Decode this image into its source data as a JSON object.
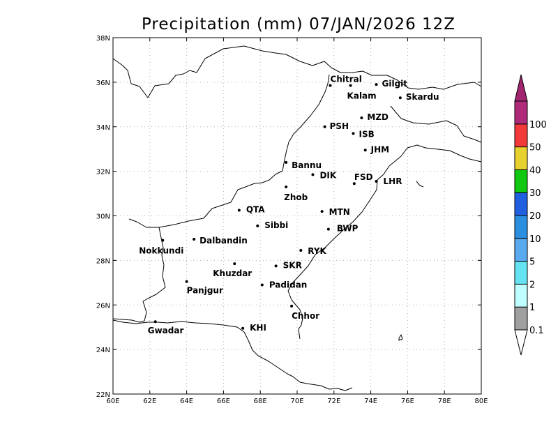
{
  "title": "Precipitation (mm) 07/JAN/2026 12Z",
  "map": {
    "lon_range": [
      60,
      80
    ],
    "lat_range": [
      22,
      38
    ],
    "grid": "dotted",
    "x_ticks": [
      {
        "value": 60,
        "label": "60E"
      },
      {
        "value": 62,
        "label": "62E"
      },
      {
        "value": 64,
        "label": "64E"
      },
      {
        "value": 66,
        "label": "66E"
      },
      {
        "value": 68,
        "label": "68E"
      },
      {
        "value": 70,
        "label": "70E"
      },
      {
        "value": 72,
        "label": "72E"
      },
      {
        "value": 74,
        "label": "74E"
      },
      {
        "value": 76,
        "label": "76E"
      },
      {
        "value": 78,
        "label": "78E"
      },
      {
        "value": 80,
        "label": "80E"
      }
    ],
    "y_ticks": [
      {
        "value": 22,
        "label": "22N"
      },
      {
        "value": 24,
        "label": "24N"
      },
      {
        "value": 26,
        "label": "26N"
      },
      {
        "value": 28,
        "label": "28N"
      },
      {
        "value": 30,
        "label": "30N"
      },
      {
        "value": 32,
        "label": "32N"
      },
      {
        "value": 34,
        "label": "34N"
      },
      {
        "value": 36,
        "label": "36N"
      },
      {
        "value": 38,
        "label": "38N"
      }
    ]
  },
  "cities": [
    {
      "name": "Chitral",
      "lon": 71.8,
      "lat": 35.85,
      "dx": 0,
      "dy": -5
    },
    {
      "name": "Gilgit",
      "lon": 74.3,
      "lat": 35.9,
      "dx": 8,
      "dy": 3
    },
    {
      "name": "Kalam",
      "lon": 72.9,
      "lat": 35.85,
      "dx": -5,
      "dy": 19
    },
    {
      "name": "Skardu",
      "lon": 75.6,
      "lat": 35.3,
      "dx": 8,
      "dy": 3
    },
    {
      "name": "MZD",
      "lon": 73.5,
      "lat": 34.4,
      "dx": 8,
      "dy": 3
    },
    {
      "name": "PSH",
      "lon": 71.5,
      "lat": 34.0,
      "dx": 7,
      "dy": 3
    },
    {
      "name": "ISB",
      "lon": 73.05,
      "lat": 33.7,
      "dx": 8,
      "dy": 5
    },
    {
      "name": "JHM",
      "lon": 73.7,
      "lat": 32.95,
      "dx": 8,
      "dy": 3
    },
    {
      "name": "Bannu",
      "lon": 69.4,
      "lat": 32.4,
      "dx": 8,
      "dy": 8
    },
    {
      "name": "DIK",
      "lon": 70.85,
      "lat": 31.85,
      "dx": 10,
      "dy": 5
    },
    {
      "name": "FSD",
      "lon": 73.1,
      "lat": 31.45,
      "dx": 0,
      "dy": -5
    },
    {
      "name": "LHR",
      "lon": 74.3,
      "lat": 31.55,
      "dx": 10,
      "dy": 4
    },
    {
      "name": "Zhob",
      "lon": 69.4,
      "lat": 31.3,
      "dx": -3,
      "dy": 19
    },
    {
      "name": "QTA",
      "lon": 66.85,
      "lat": 30.25,
      "dx": 10,
      "dy": 3
    },
    {
      "name": "MTN",
      "lon": 71.35,
      "lat": 30.2,
      "dx": 10,
      "dy": 5
    },
    {
      "name": "Sibbi",
      "lon": 67.85,
      "lat": 29.55,
      "dx": 10,
      "dy": 3
    },
    {
      "name": "BWP",
      "lon": 71.7,
      "lat": 29.4,
      "dx": 12,
      "dy": 3
    },
    {
      "name": "Nokkundi",
      "lon": 62.7,
      "lat": 28.9,
      "dx": -34,
      "dy": 19
    },
    {
      "name": "Dalbandin",
      "lon": 64.4,
      "lat": 28.95,
      "dx": 8,
      "dy": 6
    },
    {
      "name": "RYK",
      "lon": 70.2,
      "lat": 28.45,
      "dx": 10,
      "dy": 5
    },
    {
      "name": "Khuzdar",
      "lon": 66.6,
      "lat": 27.85,
      "dx": -31,
      "dy": 18
    },
    {
      "name": "SKR",
      "lon": 68.85,
      "lat": 27.75,
      "dx": 10,
      "dy": 3
    },
    {
      "name": "Panjgur",
      "lon": 64.0,
      "lat": 27.05,
      "dx": 0,
      "dy": 17
    },
    {
      "name": "Padidan",
      "lon": 68.1,
      "lat": 26.9,
      "dx": 10,
      "dy": 4
    },
    {
      "name": "Chhor",
      "lon": 69.7,
      "lat": 25.95,
      "dx": 0,
      "dy": 18
    },
    {
      "name": "Gwadar",
      "lon": 62.3,
      "lat": 25.25,
      "dx": -11,
      "dy": 17
    },
    {
      "name": "KHI",
      "lon": 67.05,
      "lat": 24.95,
      "dx": 10,
      "dy": 3
    }
  ],
  "colorbar": {
    "levels": [
      "0.1",
      "1",
      "2",
      "5",
      "10",
      "20",
      "30",
      "40",
      "50",
      "100"
    ],
    "colors": [
      "#a0a0a0",
      "#bfffff",
      "#66e3f2",
      "#5aaaf0",
      "#2b8fe0",
      "#2060e0",
      "#10c810",
      "#e6d12e",
      "#f23a3a",
      "#b02a7a"
    ],
    "below_color": "#ffffff",
    "above_color": "#a0256e"
  }
}
